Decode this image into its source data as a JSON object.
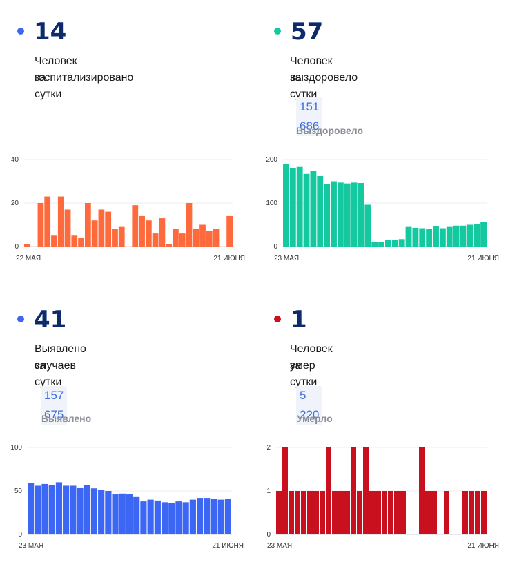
{
  "colors": {
    "hospitalized": "#ff6a3d",
    "recovered": "#14c9a0",
    "cases": "#3c67f5",
    "deaths": "#c8101e",
    "number": "#0d2a6b"
  },
  "panels": {
    "hospitalized": {
      "value": "14",
      "caption_line1": "Человек госпитализировано",
      "caption_line2": "за сутки"
    },
    "recovered": {
      "value": "57",
      "caption_line1": "Человек выздоровело",
      "caption_line2": "за сутки",
      "total": "151 686",
      "total_label": "Выздоровело"
    },
    "cases": {
      "value": "41",
      "caption_line1": "Выявлено случаев",
      "caption_line2": "за сутки",
      "total": "157 675",
      "total_label": "Выявлено"
    },
    "deaths": {
      "value": "1",
      "caption_line1": "Человек умер",
      "caption_line2": "за сутки",
      "total": "5 220",
      "total_label": "Умерло"
    }
  },
  "chart_data": [
    {
      "id": "hospitalized",
      "type": "bar",
      "x_start_label": "22 МАЯ",
      "x_end_label": "21 ИЮНЯ",
      "yticks": [
        0,
        20,
        40
      ],
      "ylim": [
        0,
        40
      ],
      "grid": true,
      "values": [
        1,
        0,
        20,
        23,
        5,
        23,
        17,
        5,
        4,
        20,
        12,
        17,
        16,
        8,
        9,
        0,
        19,
        14,
        12,
        6,
        13,
        1,
        8,
        6,
        20,
        8,
        10,
        7,
        8,
        0,
        14
      ]
    },
    {
      "id": "recovered",
      "type": "bar",
      "x_start_label": "23 МАЯ",
      "x_end_label": "21 ИЮНЯ",
      "yticks": [
        0,
        100,
        200
      ],
      "ylim": [
        0,
        200
      ],
      "grid": true,
      "values": [
        190,
        180,
        183,
        167,
        173,
        162,
        143,
        150,
        147,
        145,
        147,
        146,
        96,
        10,
        10,
        15,
        15,
        17,
        45,
        43,
        42,
        40,
        46,
        42,
        45,
        48,
        48,
        50,
        51,
        57
      ]
    },
    {
      "id": "cases",
      "type": "bar",
      "x_start_label": "23 МАЯ",
      "x_end_label": "21 ИЮНЯ",
      "yticks": [
        0,
        50,
        100
      ],
      "ylim": [
        0,
        100
      ],
      "grid": true,
      "values": [
        59,
        56,
        58,
        57,
        60,
        56,
        56,
        54,
        57,
        53,
        51,
        50,
        46,
        47,
        46,
        43,
        38,
        40,
        39,
        37,
        36,
        38,
        37,
        40,
        42,
        42,
        41,
        40,
        41
      ]
    },
    {
      "id": "deaths",
      "type": "bar",
      "x_start_label": "23 МАЯ",
      "x_end_label": "21 ИЮНЯ",
      "yticks": [
        0,
        1,
        2
      ],
      "ylim": [
        0,
        2
      ],
      "grid": true,
      "values": [
        1,
        2,
        1,
        1,
        1,
        1,
        1,
        1,
        2,
        1,
        1,
        1,
        2,
        1,
        2,
        1,
        1,
        1,
        1,
        1,
        1,
        0,
        0,
        2,
        1,
        1,
        0,
        1,
        0,
        0,
        1,
        1,
        1,
        1
      ]
    }
  ]
}
